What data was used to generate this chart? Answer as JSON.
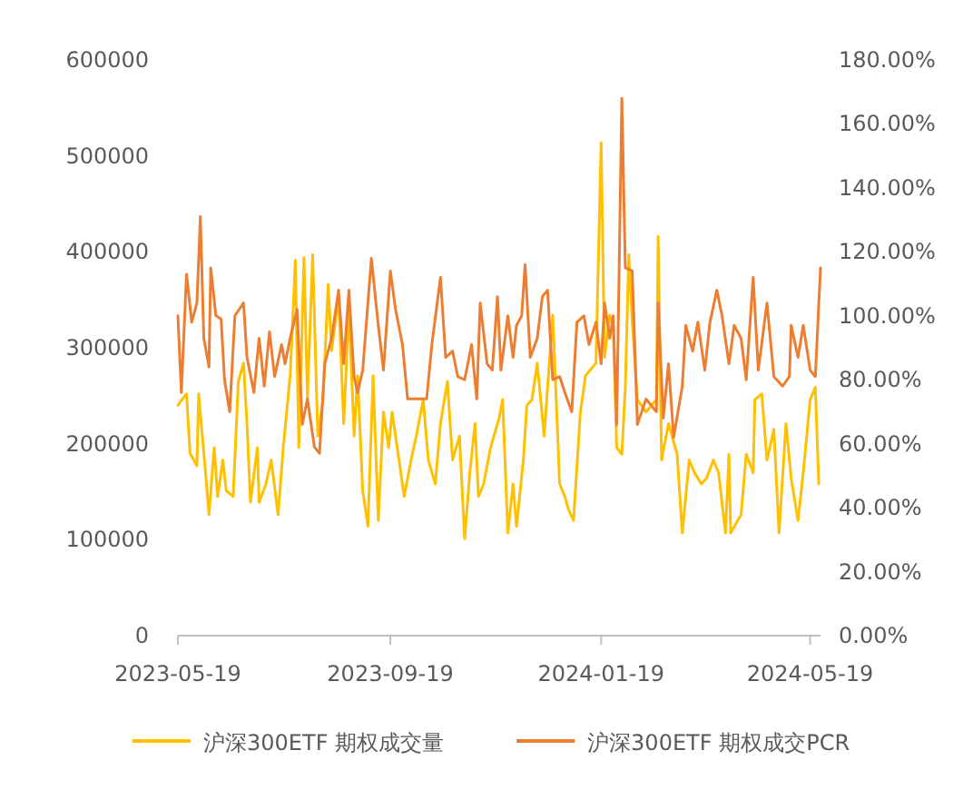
{
  "chart_data": {
    "type": "line",
    "xlim": [
      "2023-05-19",
      "2024-05-25"
    ],
    "xticks": [
      "2023-05-19",
      "2023-09-19",
      "2024-01-19",
      "2024-05-19"
    ],
    "ylim": [
      0,
      600000
    ],
    "yticks": [
      0,
      100000,
      200000,
      300000,
      400000,
      500000,
      600000
    ],
    "y2lim": [
      0,
      180
    ],
    "y2ticks": [
      {
        "value": 0,
        "label": "0.00%"
      },
      {
        "value": 20,
        "label": "20.00%"
      },
      {
        "value": 40,
        "label": "40.00%"
      },
      {
        "value": 60,
        "label": "60.00%"
      },
      {
        "value": 80,
        "label": "80.00%"
      },
      {
        "value": 100,
        "label": "100.00%"
      },
      {
        "value": 120,
        "label": "120.00%"
      },
      {
        "value": 140,
        "label": "140.00%"
      },
      {
        "value": 160,
        "label": "160.00%"
      },
      {
        "value": 180,
        "label": "180.00%"
      }
    ],
    "grid": false,
    "legend": "bottom",
    "marker": "none",
    "line_style": "solid",
    "series": [
      {
        "name": "沪深300ETF 期权成交量",
        "color": "#ffc000",
        "x": [
          "2023-05-19",
          "2023-05-24",
          "2023-05-26",
          "2023-05-30",
          "2023-05-31",
          "2023-06-04",
          "2023-06-06",
          "2023-06-09",
          "2023-06-11",
          "2023-06-14",
          "2023-06-16",
          "2023-06-20",
          "2023-06-23",
          "2023-06-26",
          "2023-06-28",
          "2023-06-30",
          "2023-07-04",
          "2023-07-05",
          "2023-07-09",
          "2023-07-12",
          "2023-07-16",
          "2023-07-19",
          "2023-07-23",
          "2023-07-26",
          "2023-07-28",
          "2023-07-31",
          "2023-08-02",
          "2023-08-05",
          "2023-08-08",
          "2023-08-11",
          "2023-08-14",
          "2023-08-16",
          "2023-08-20",
          "2023-08-23",
          "2023-08-26",
          "2023-08-29",
          "2023-08-31",
          "2023-09-03",
          "2023-09-06",
          "2023-09-09",
          "2023-09-12",
          "2023-09-15",
          "2023-09-18",
          "2023-09-20",
          "2023-09-24",
          "2023-09-27",
          "2023-10-01",
          "2023-10-04",
          "2023-10-08",
          "2023-10-11",
          "2023-10-15",
          "2023-10-18",
          "2023-10-22",
          "2023-10-25",
          "2023-10-29",
          "2023-11-01",
          "2023-11-04",
          "2023-11-07",
          "2023-11-09",
          "2023-11-12",
          "2023-11-16",
          "2023-11-21",
          "2023-11-23",
          "2023-11-26",
          "2023-11-29",
          "2023-12-01",
          "2023-12-05",
          "2023-12-07",
          "2023-12-10",
          "2023-12-13",
          "2023-12-17",
          "2023-12-22",
          "2023-12-26",
          "2023-12-29",
          "2023-12-31",
          "2024-01-03",
          "2024-01-07",
          "2024-01-10",
          "2024-01-16",
          "2024-01-19",
          "2024-01-21",
          "2024-01-24",
          "2024-01-26",
          "2024-01-28",
          "2024-01-31",
          "2024-02-02",
          "2024-02-04",
          "2024-02-06",
          "2024-02-09",
          "2024-02-14",
          "2024-02-20",
          "2024-02-21",
          "2024-02-23",
          "2024-02-27",
          "2024-03-03",
          "2024-03-06",
          "2024-03-10",
          "2024-03-13",
          "2024-03-17",
          "2024-03-20",
          "2024-03-24",
          "2024-03-27",
          "2024-03-31",
          "2024-04-02",
          "2024-04-03",
          "2024-04-09",
          "2024-04-12",
          "2024-04-16",
          "2024-04-17",
          "2024-04-21",
          "2024-04-24",
          "2024-04-28",
          "2024-05-01",
          "2024-05-05",
          "2024-05-08",
          "2024-05-12",
          "2024-05-15",
          "2024-05-19",
          "2024-05-22",
          "2024-05-24"
        ],
        "values": [
          240000,
          252000,
          190000,
          177000,
          252000,
          170000,
          126000,
          196000,
          145000,
          183000,
          151000,
          145000,
          265000,
          284000,
          221000,
          139000,
          196000,
          139000,
          158000,
          183000,
          126000,
          196000,
          271000,
          391000,
          196000,
          394000,
          246000,
          397000,
          208000,
          246000,
          366000,
          297000,
          353000,
          221000,
          341000,
          208000,
          271000,
          151000,
          114000,
          271000,
          120000,
          233000,
          196000,
          233000,
          183000,
          145000,
          183000,
          208000,
          246000,
          183000,
          158000,
          221000,
          265000,
          183000,
          208000,
          101000,
          170000,
          221000,
          145000,
          158000,
          196000,
          227000,
          246000,
          107000,
          158000,
          114000,
          183000,
          240000,
          246000,
          284000,
          208000,
          334000,
          158000,
          145000,
          132000,
          120000,
          233000,
          271000,
          284000,
          514000,
          290000,
          334000,
          322000,
          196000,
          189000,
          259000,
          397000,
          328000,
          246000,
          233000,
          246000,
          416000,
          183000,
          221000,
          189000,
          107000,
          183000,
          170000,
          158000,
          164000,
          183000,
          170000,
          107000,
          189000,
          107000,
          126000,
          189000,
          170000,
          246000,
          252000,
          183000,
          215000,
          107000,
          221000,
          164000,
          120000,
          170000,
          246000,
          259000,
          158000
        ]
      },
      {
        "name": "沪深300ETF 期权成交PCR",
        "color": "#ed7d31",
        "axis": "y2",
        "x": [
          "2023-05-19",
          "2023-05-21",
          "2023-05-24",
          "2023-05-27",
          "2023-05-30",
          "2023-06-01",
          "2023-06-03",
          "2023-06-06",
          "2023-06-07",
          "2023-06-10",
          "2023-06-13",
          "2023-06-15",
          "2023-06-18",
          "2023-06-21",
          "2023-06-26",
          "2023-06-28",
          "2023-07-02",
          "2023-07-05",
          "2023-07-08",
          "2023-07-11",
          "2023-07-14",
          "2023-07-18",
          "2023-07-20",
          "2023-07-23",
          "2023-07-27",
          "2023-07-30",
          "2023-08-02",
          "2023-08-06",
          "2023-08-09",
          "2023-08-12",
          "2023-08-16",
          "2023-08-20",
          "2023-08-23",
          "2023-08-26",
          "2023-08-29",
          "2023-08-31",
          "2023-09-03",
          "2023-09-08",
          "2023-09-12",
          "2023-09-15",
          "2023-09-19",
          "2023-09-22",
          "2023-09-26",
          "2023-09-29",
          "2023-10-10",
          "2023-10-13",
          "2023-10-18",
          "2023-10-21",
          "2023-10-25",
          "2023-10-28",
          "2023-11-01",
          "2023-11-05",
          "2023-11-08",
          "2023-11-10",
          "2023-11-14",
          "2023-11-17",
          "2023-11-20",
          "2023-11-22",
          "2023-11-26",
          "2023-11-29",
          "2023-12-01",
          "2023-12-04",
          "2023-12-06",
          "2023-12-09",
          "2023-12-13",
          "2023-12-16",
          "2023-12-19",
          "2023-12-22",
          "2023-12-26",
          "2023-12-29",
          "2024-01-02",
          "2024-01-05",
          "2024-01-09",
          "2024-01-12",
          "2024-01-16",
          "2024-01-19",
          "2024-01-21",
          "2024-01-24",
          "2024-01-26",
          "2024-01-28",
          "2024-01-31",
          "2024-02-02",
          "2024-02-06",
          "2024-02-09",
          "2024-02-14",
          "2024-02-20",
          "2024-02-21",
          "2024-02-24",
          "2024-02-27",
          "2024-03-01",
          "2024-03-06",
          "2024-03-08",
          "2024-03-12",
          "2024-03-15",
          "2024-03-19",
          "2024-03-22",
          "2024-03-26",
          "2024-03-29",
          "2024-04-02",
          "2024-04-05",
          "2024-04-09",
          "2024-04-12",
          "2024-04-16",
          "2024-04-19",
          "2024-04-24",
          "2024-04-28",
          "2024-05-03",
          "2024-05-07",
          "2024-05-08",
          "2024-05-12",
          "2024-05-15",
          "2024-05-19",
          "2024-05-22",
          "2024-05-25"
        ],
        "values": [
          100,
          76,
          113,
          98,
          104,
          131,
          93,
          84,
          115,
          100,
          99,
          80,
          70,
          100,
          104,
          87,
          76,
          93,
          78,
          95,
          81,
          91,
          85,
          93,
          102,
          66,
          74,
          59,
          57,
          85,
          93,
          108,
          85,
          108,
          81,
          76,
          83,
          118,
          97,
          83,
          114,
          102,
          91,
          74,
          74,
          91,
          112,
          87,
          89,
          81,
          80,
          91,
          74,
          104,
          85,
          83,
          106,
          83,
          100,
          87,
          97,
          100,
          116,
          87,
          93,
          106,
          108,
          80,
          81,
          76,
          70,
          98,
          100,
          91,
          98,
          85,
          104,
          93,
          100,
          66,
          168,
          115,
          114,
          66,
          74,
          70,
          104,
          68,
          85,
          62,
          78,
          97,
          89,
          98,
          83,
          98,
          108,
          100,
          85,
          97,
          93,
          80,
          112,
          83,
          104,
          81,
          78,
          81,
          97,
          87,
          97,
          83,
          81,
          115
        ]
      }
    ]
  }
}
